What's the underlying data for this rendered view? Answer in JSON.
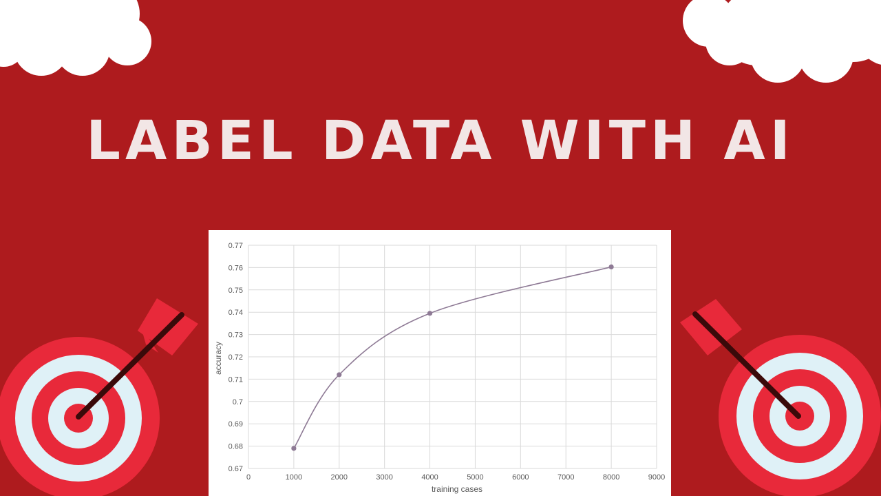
{
  "headline": "LABEL DATA WITH AI",
  "colors": {
    "background": "#ae1b1e",
    "headline": "#f2e6e6",
    "target_red": "#e8293a",
    "target_light": "#dff1f7",
    "line": "#8e7a95",
    "grid": "#d9d9d9"
  },
  "decorations": {
    "clouds": [
      "cloud-left",
      "cloud-right"
    ],
    "targets": [
      "target-with-arrow-left",
      "target-with-arrow-right"
    ]
  },
  "chart_data": {
    "type": "scatter",
    "smoothed_line": true,
    "markers": true,
    "title": "",
    "xlabel": "training cases",
    "ylabel": "accuracy",
    "xlim": [
      0,
      9000
    ],
    "ylim": [
      0.67,
      0.77
    ],
    "x_ticks": [
      "0",
      "1000",
      "2000",
      "3000",
      "4000",
      "5000",
      "6000",
      "7000",
      "8000",
      "9000"
    ],
    "y_ticks": [
      "0.67",
      "0.68",
      "0.69",
      "0.7",
      "0.71",
      "0.72",
      "0.73",
      "0.74",
      "0.75",
      "0.76",
      "0.77"
    ],
    "grid": true,
    "legend": "none",
    "series": [
      {
        "x": [
          1000,
          2000,
          4000,
          8000
        ],
        "y": [
          0.679,
          0.712,
          0.7395,
          0.7603
        ]
      }
    ]
  }
}
